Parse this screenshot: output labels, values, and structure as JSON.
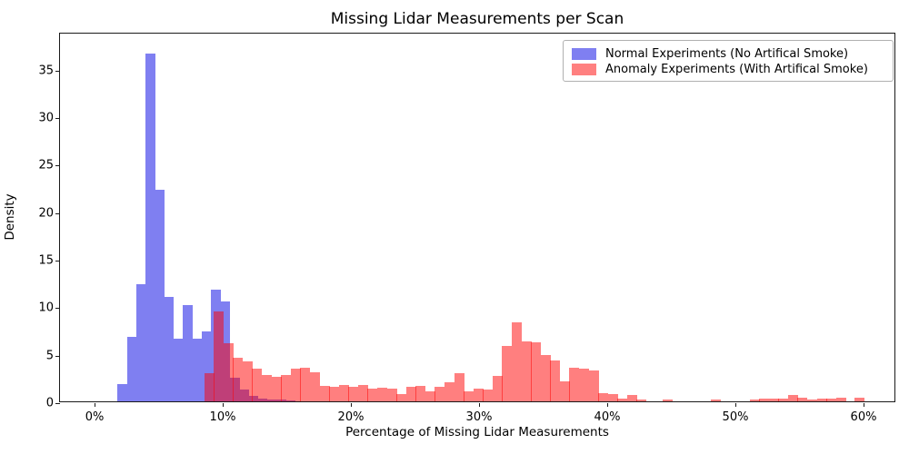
{
  "title": "Missing Lidar Measurements per Scan",
  "axes": {
    "xlabel": "Percentage of Missing Lidar Measurements",
    "ylabel": "Density",
    "x_ticks": [
      {
        "value": 0,
        "label": "0%"
      },
      {
        "value": 10,
        "label": "10%"
      },
      {
        "value": 20,
        "label": "20%"
      },
      {
        "value": 30,
        "label": "30%"
      },
      {
        "value": 40,
        "label": "40%"
      },
      {
        "value": 50,
        "label": "50%"
      },
      {
        "value": 60,
        "label": "60%"
      }
    ],
    "y_ticks": [
      0,
      5,
      10,
      15,
      20,
      25,
      30,
      35
    ]
  },
  "legend": {
    "entries": [
      {
        "label": "Normal Experiments (No Artifical Smoke)",
        "swatch_color": "#7f7ff1"
      },
      {
        "label": "Anomaly Experiments (With Artifical Smoke)",
        "swatch_color": "#ff8080"
      }
    ]
  },
  "colors": {
    "normal_fill": "#7f7ff1",
    "anomaly_fill_rgba": "rgba(255,0,0,0.5)",
    "overlap_observed": "#bf4080",
    "spine": "#1a1a1a"
  },
  "chart_data": {
    "type": "histogram",
    "title": "Missing Lidar Measurements per Scan",
    "xlabel": "Percentage of Missing Lidar Measurements",
    "ylabel": "Density",
    "xlim": [
      -2.7,
      62.5
    ],
    "ylim": [
      0,
      38.9
    ],
    "grid": false,
    "legend_position": "upper right",
    "x_unit": "percent",
    "series": [
      {
        "name": "Normal Experiments (No Artifical Smoke)",
        "color": "blue (alpha 0.5)",
        "bin_width_pct": 0.73,
        "bars": [
          [
            1.8,
            1.8
          ],
          [
            2.53,
            6.8
          ],
          [
            3.26,
            12.3
          ],
          [
            3.99,
            36.6
          ],
          [
            4.72,
            22.3
          ],
          [
            5.45,
            11.0
          ],
          [
            6.18,
            6.6
          ],
          [
            6.91,
            10.1
          ],
          [
            7.64,
            6.6
          ],
          [
            8.37,
            7.4
          ],
          [
            9.1,
            11.8
          ],
          [
            9.83,
            10.5
          ],
          [
            10.56,
            2.5
          ],
          [
            11.29,
            1.2
          ],
          [
            12.02,
            0.6
          ],
          [
            12.75,
            0.3
          ],
          [
            13.48,
            0.2
          ],
          [
            14.21,
            0.15
          ],
          [
            14.94,
            0.1
          ]
        ]
      },
      {
        "name": "Anomaly Experiments (With Artifical Smoke)",
        "color": "red (alpha 0.5)",
        "bin_width_pct": 0.75,
        "bars": [
          [
            8.55,
            3.0
          ],
          [
            9.3,
            9.5
          ],
          [
            10.05,
            6.1
          ],
          [
            10.8,
            4.6
          ],
          [
            11.55,
            4.2
          ],
          [
            12.3,
            3.45
          ],
          [
            13.05,
            2.75
          ],
          [
            13.8,
            2.6
          ],
          [
            14.55,
            2.8
          ],
          [
            15.3,
            3.4
          ],
          [
            16.05,
            3.55
          ],
          [
            16.8,
            3.05
          ],
          [
            17.55,
            1.6
          ],
          [
            18.3,
            1.5
          ],
          [
            19.05,
            1.7
          ],
          [
            19.8,
            1.5
          ],
          [
            20.55,
            1.7
          ],
          [
            21.3,
            1.3
          ],
          [
            22.05,
            1.45
          ],
          [
            22.8,
            1.3
          ],
          [
            23.55,
            0.8
          ],
          [
            24.3,
            1.5
          ],
          [
            25.05,
            1.6
          ],
          [
            25.8,
            1.1
          ],
          [
            26.55,
            1.5
          ],
          [
            27.3,
            2.0
          ],
          [
            28.05,
            3.0
          ],
          [
            28.8,
            1.1
          ],
          [
            29.55,
            1.3
          ],
          [
            30.3,
            1.2
          ],
          [
            31.05,
            2.7
          ],
          [
            31.8,
            5.8
          ],
          [
            32.55,
            8.3
          ],
          [
            33.3,
            6.3
          ],
          [
            34.05,
            6.2
          ],
          [
            34.8,
            4.9
          ],
          [
            35.55,
            4.35
          ],
          [
            36.3,
            2.1
          ],
          [
            37.05,
            3.55
          ],
          [
            37.8,
            3.4
          ],
          [
            38.55,
            3.3
          ],
          [
            39.3,
            0.9
          ],
          [
            40.05,
            0.75
          ],
          [
            40.8,
            0.3
          ],
          [
            41.55,
            0.7
          ],
          [
            42.3,
            0.2
          ],
          [
            44.3,
            0.15
          ],
          [
            48.1,
            0.15
          ],
          [
            51.1,
            0.2
          ],
          [
            51.85,
            0.3
          ],
          [
            52.6,
            0.3
          ],
          [
            53.35,
            0.25
          ],
          [
            54.1,
            0.65
          ],
          [
            54.85,
            0.35
          ],
          [
            55.6,
            0.2
          ],
          [
            56.35,
            0.25
          ],
          [
            57.1,
            0.25
          ],
          [
            57.85,
            0.35
          ],
          [
            59.3,
            0.4
          ]
        ]
      }
    ]
  }
}
